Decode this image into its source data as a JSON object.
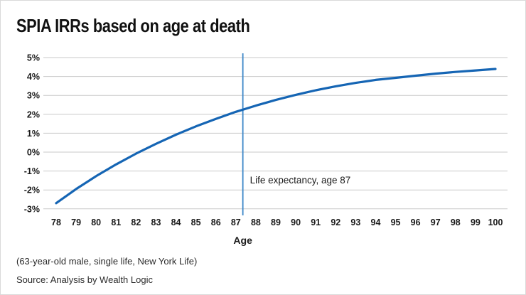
{
  "title": "SPIA IRRs based on age at death",
  "footnote": "(63-year-old male, single life, New York Life)",
  "source": "Source: Analysis by Wealth Logic",
  "colors": {
    "curve": "#1565b4",
    "life_line": "#3d87c8",
    "grid": "#c9c9c9",
    "tick_text": "#1a1a1a",
    "title_text": "#111111"
  },
  "chart_data": {
    "type": "line",
    "title": "SPIA IRRs based on age at death",
    "xlabel": "Age",
    "ylabel": "",
    "x": [
      78,
      79,
      80,
      81,
      82,
      83,
      84,
      85,
      86,
      87,
      88,
      89,
      90,
      91,
      92,
      93,
      94,
      95,
      96,
      97,
      98,
      99,
      100
    ],
    "series": [
      {
        "name": "SPIA IRR",
        "values": [
          -2.7,
          -1.95,
          -1.27,
          -0.65,
          -0.08,
          0.44,
          0.92,
          1.36,
          1.76,
          2.13,
          2.46,
          2.76,
          3.03,
          3.27,
          3.48,
          3.66,
          3.82,
          3.93,
          4.04,
          4.15,
          4.24,
          4.32,
          4.4
        ]
      }
    ],
    "ylim": [
      -3,
      5
    ],
    "y_tick_step": 1,
    "y_tick_suffix": "%",
    "x_ticks": [
      78,
      79,
      80,
      81,
      82,
      83,
      84,
      85,
      86,
      87,
      88,
      89,
      90,
      91,
      92,
      93,
      94,
      95,
      96,
      97,
      98,
      99,
      100
    ],
    "grid": "horizontal",
    "legend": "none",
    "annotations": [
      {
        "type": "vline",
        "x": 87.35,
        "label": "Life expectancy, age 87"
      }
    ]
  }
}
